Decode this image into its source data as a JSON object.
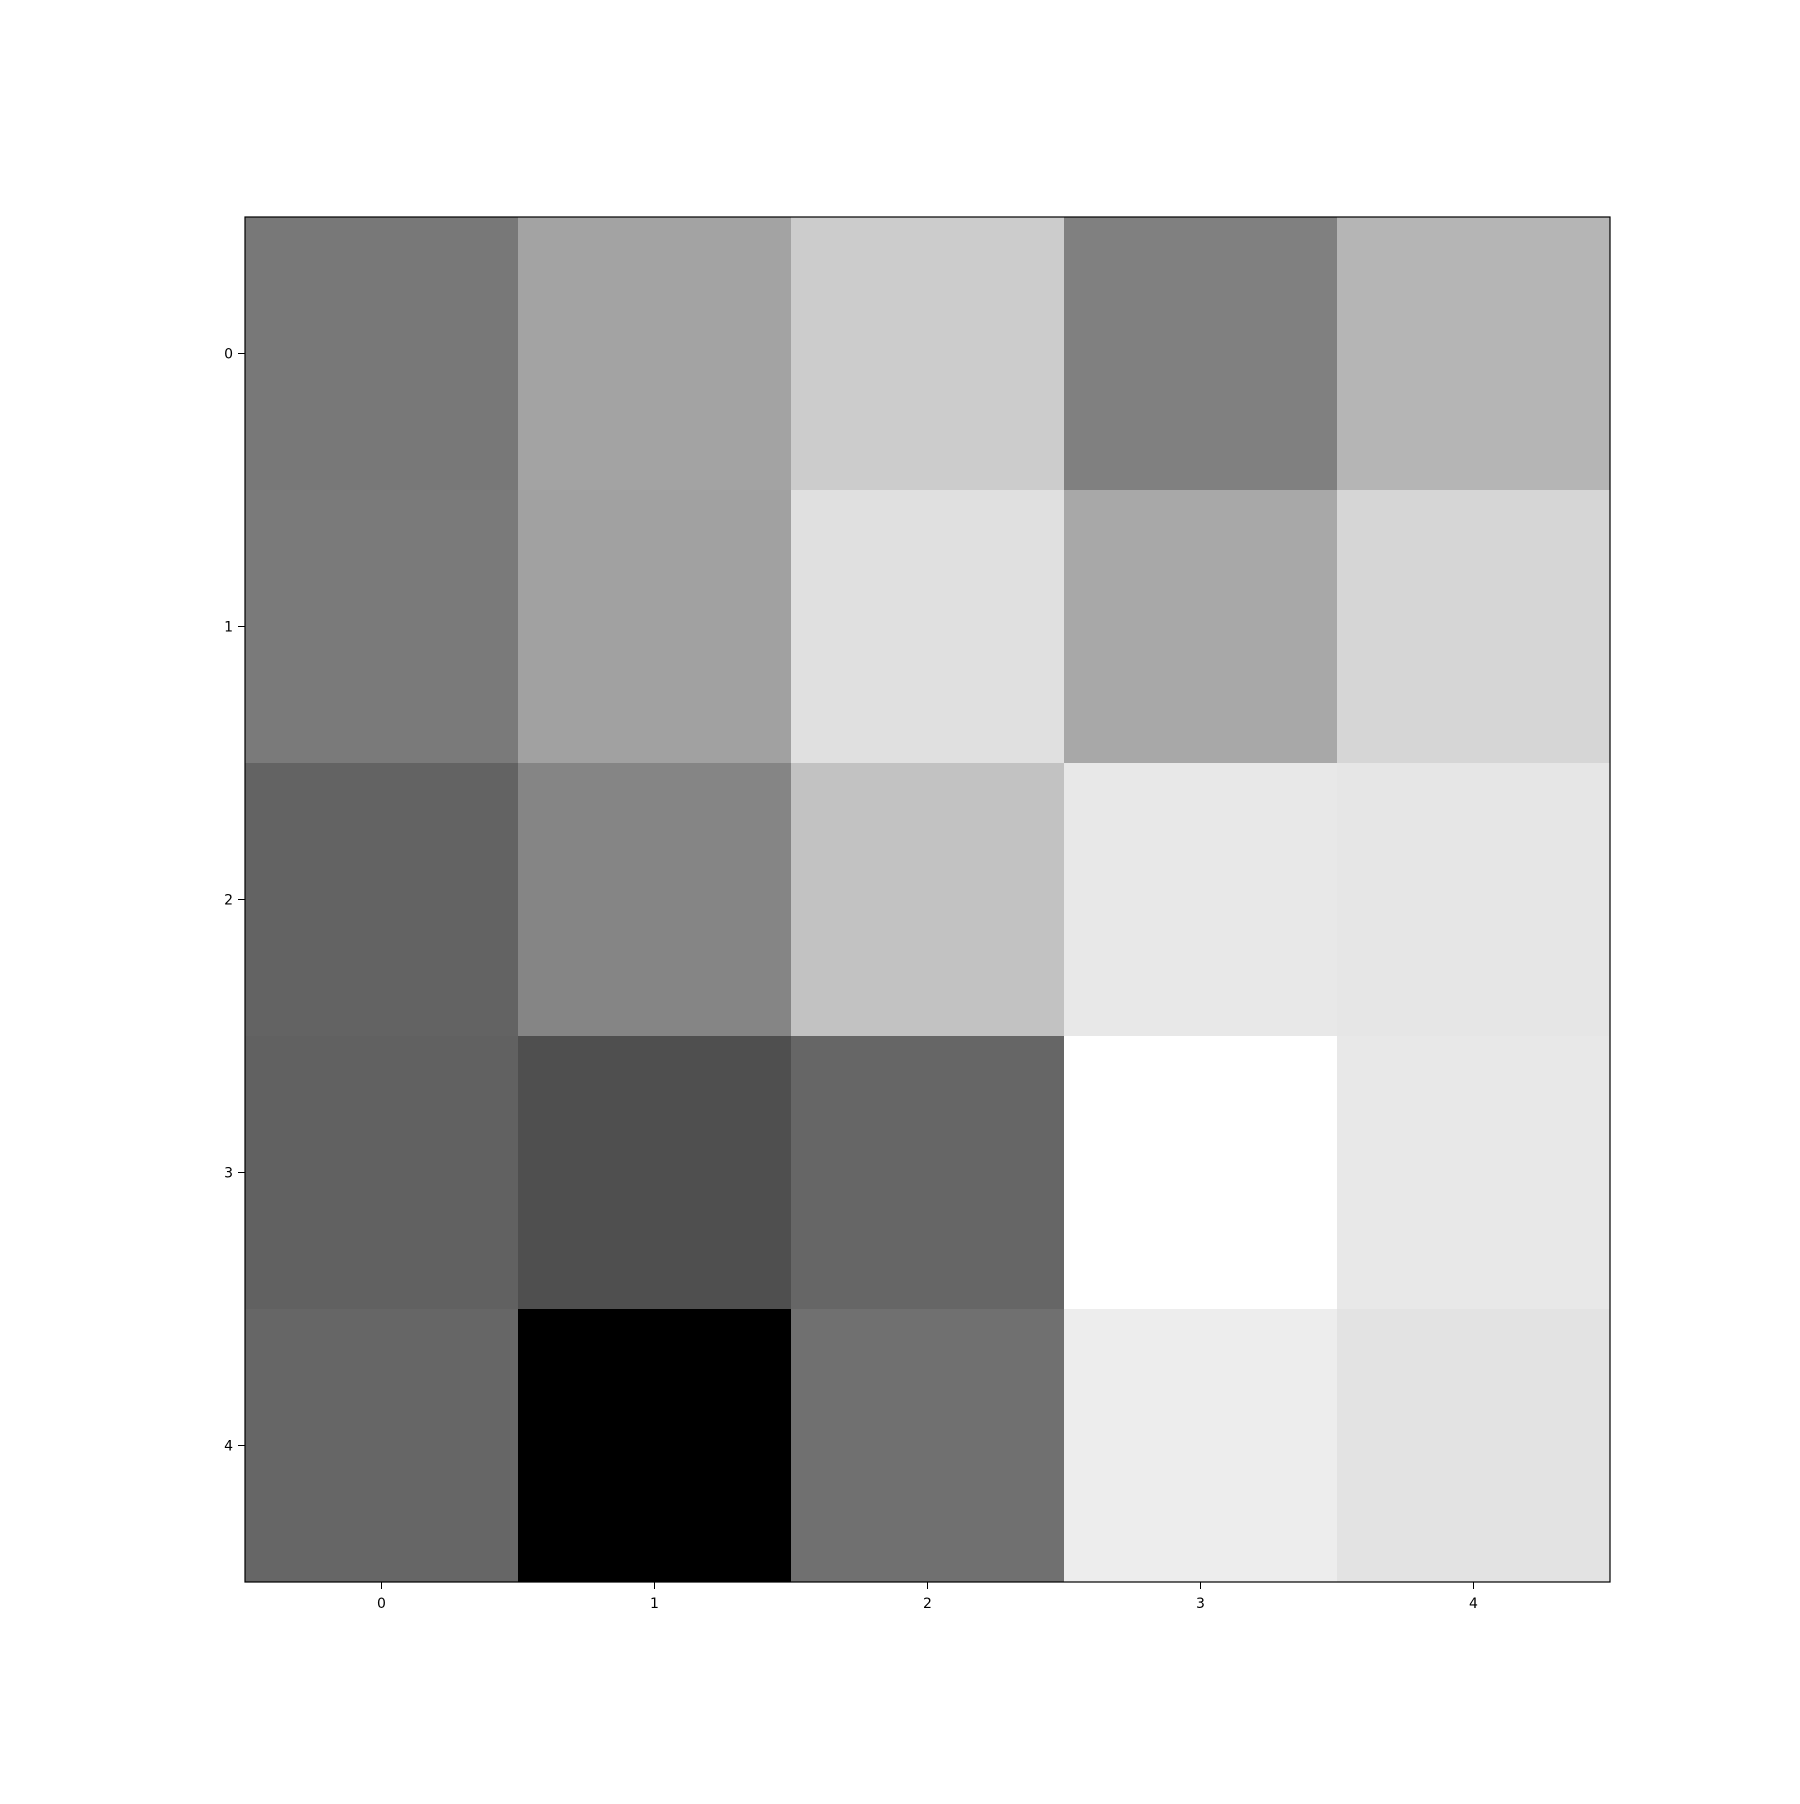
{
  "chart_data": {
    "type": "heatmap",
    "colormap": "gray",
    "x": [
      "0",
      "1",
      "2",
      "3",
      "4"
    ],
    "y": [
      "0",
      "1",
      "2",
      "3",
      "4"
    ],
    "values": [
      [
        0.47,
        0.64,
        0.8,
        0.5,
        0.71
      ],
      [
        0.48,
        0.63,
        0.88,
        0.66,
        0.84
      ],
      [
        0.39,
        0.52,
        0.76,
        0.91,
        0.9
      ],
      [
        0.38,
        0.31,
        0.4,
        1.0,
        0.91
      ],
      [
        0.4,
        0.0,
        0.44,
        0.93,
        0.89
      ]
    ],
    "value_range": [
      0,
      1
    ],
    "grid": false,
    "legend": "none",
    "title": "",
    "xlabel": "",
    "ylabel": ""
  }
}
